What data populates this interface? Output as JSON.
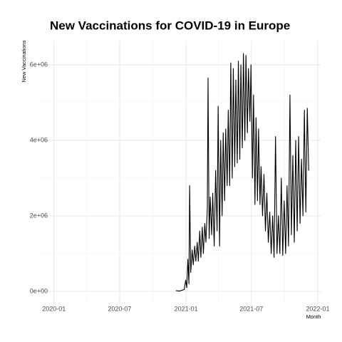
{
  "chart_data": {
    "type": "line",
    "title": "New Vaccinations for COVID-19 in Europe",
    "x_label": "Month",
    "y_label": "New Vaccinations",
    "xlim": [
      "2019-11-21",
      "2022-01-09"
    ],
    "xticks": [
      {
        "value": "2020-01-01",
        "label": "2020-01"
      },
      {
        "value": "2020-07-01",
        "label": "2020-07"
      },
      {
        "value": "2021-01-01",
        "label": "2021-01"
      },
      {
        "value": "2021-07-01",
        "label": "2021-07"
      },
      {
        "value": "2022-01-01",
        "label": "2022-01"
      }
    ],
    "ylim": [
      -340000,
      6640000
    ],
    "yticks": [
      {
        "value": 0,
        "label": "0e+00"
      },
      {
        "value": 2000000,
        "label": "2e+06"
      },
      {
        "value": 4000000,
        "label": "4e+06"
      },
      {
        "value": 6000000,
        "label": "6e+06"
      }
    ],
    "grid": true,
    "series": [
      {
        "name": "New Vaccinations",
        "color": "#000000",
        "x": [
          "2020-12-04",
          "2020-12-14",
          "2020-12-21",
          "2020-12-27",
          "2020-12-31",
          "2021-01-03",
          "2021-01-06",
          "2021-01-09",
          "2021-01-11",
          "2021-01-14",
          "2021-01-18",
          "2021-01-21",
          "2021-01-25",
          "2021-01-28",
          "2021-02-01",
          "2021-02-04",
          "2021-02-08",
          "2021-02-11",
          "2021-02-15",
          "2021-02-18",
          "2021-02-22",
          "2021-02-25",
          "2021-03-01",
          "2021-03-03",
          "2021-03-06",
          "2021-03-09",
          "2021-03-13",
          "2021-03-16",
          "2021-03-20",
          "2021-03-24",
          "2021-03-28",
          "2021-03-31",
          "2021-04-04",
          "2021-04-07",
          "2021-04-11",
          "2021-04-14",
          "2021-04-18",
          "2021-04-21",
          "2021-04-25",
          "2021-04-28",
          "2021-05-02",
          "2021-05-05",
          "2021-05-09",
          "2021-05-12",
          "2021-05-16",
          "2021-05-19",
          "2021-05-23",
          "2021-05-26",
          "2021-05-30",
          "2021-06-02",
          "2021-06-06",
          "2021-06-09",
          "2021-06-13",
          "2021-06-16",
          "2021-06-20",
          "2021-06-23",
          "2021-06-27",
          "2021-06-30",
          "2021-07-04",
          "2021-07-07",
          "2021-07-11",
          "2021-07-14",
          "2021-07-18",
          "2021-07-21",
          "2021-07-25",
          "2021-07-28",
          "2021-08-01",
          "2021-08-05",
          "2021-08-09",
          "2021-08-13",
          "2021-08-17",
          "2021-08-21",
          "2021-08-25",
          "2021-08-29",
          "2021-09-02",
          "2021-09-06",
          "2021-09-10",
          "2021-09-14",
          "2021-09-18",
          "2021-09-22",
          "2021-09-26",
          "2021-09-30",
          "2021-10-04",
          "2021-10-08",
          "2021-10-12",
          "2021-10-16",
          "2021-10-20",
          "2021-10-24",
          "2021-10-28",
          "2021-11-01",
          "2021-11-05",
          "2021-11-09",
          "2021-11-13",
          "2021-11-17",
          "2021-11-21",
          "2021-11-25",
          "2021-11-29",
          "2021-12-03",
          "2021-12-07"
        ],
        "values": [
          20000,
          10000,
          30000,
          50000,
          300000,
          100000,
          850000,
          200000,
          2800000,
          500000,
          1100000,
          700000,
          1200000,
          800000,
          1300000,
          800000,
          1600000,
          900000,
          1700000,
          1000000,
          1800000,
          1300000,
          2200000,
          5650000,
          1400000,
          2500000,
          1500000,
          2600000,
          1200000,
          3200000,
          1600000,
          4900000,
          1200000,
          4000000,
          2000000,
          4200000,
          2400000,
          4300000,
          2800000,
          4800000,
          2800000,
          6050000,
          3000000,
          5900000,
          3300000,
          5600000,
          3400000,
          6100000,
          3500000,
          6000000,
          3800000,
          6300000,
          4000000,
          6250000,
          4200000,
          5900000,
          4500000,
          6000000,
          3000000,
          5200000,
          2300000,
          4600000,
          2400000,
          4300000,
          2300000,
          3300000,
          2000000,
          3100000,
          1600000,
          2600000,
          1300000,
          2100000,
          1000000,
          2000000,
          900000,
          4100000,
          1000000,
          2000000,
          1000000,
          3000000,
          950000,
          2400000,
          1000000,
          2800000,
          1200000,
          5200000,
          1500000,
          3600000,
          1300000,
          4000000,
          1600000,
          4100000,
          1800000,
          3500000,
          2000000,
          4800000,
          2100000,
          4850000,
          3200000
        ]
      }
    ]
  }
}
